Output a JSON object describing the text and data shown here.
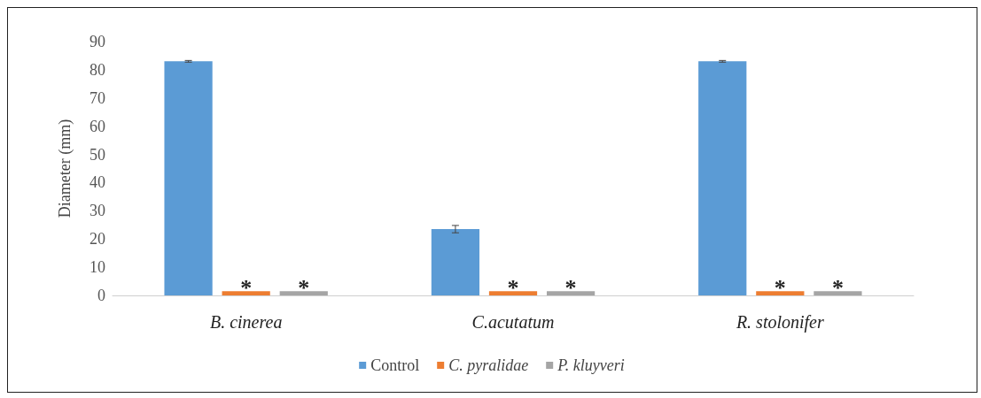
{
  "chart_data": {
    "type": "bar",
    "ylabel": "Diameter (mm)",
    "categories": [
      "B. cinerea",
      "C.acutatum",
      "R. stolonifer"
    ],
    "series": [
      {
        "name": "Control",
        "color": "#5b9bd5",
        "values": [
          83,
          23.5,
          83
        ],
        "errors": [
          0.3,
          1.3,
          0.3
        ]
      },
      {
        "name": "C. pyralidae",
        "color": "#ed7d31",
        "values": [
          1.5,
          1.5,
          1.5
        ],
        "value_labels": [
          "*",
          "*",
          "*"
        ]
      },
      {
        "name": "P. kluyveri",
        "color": "#a5a5a5",
        "values": [
          1.5,
          1.5,
          1.5
        ],
        "value_labels": [
          "*",
          "*",
          "*"
        ]
      }
    ],
    "ylim": [
      0,
      90
    ],
    "yticks": [
      0,
      10,
      20,
      30,
      40,
      50,
      60,
      70,
      80,
      90
    ],
    "grid": false,
    "legend": "bottom"
  }
}
